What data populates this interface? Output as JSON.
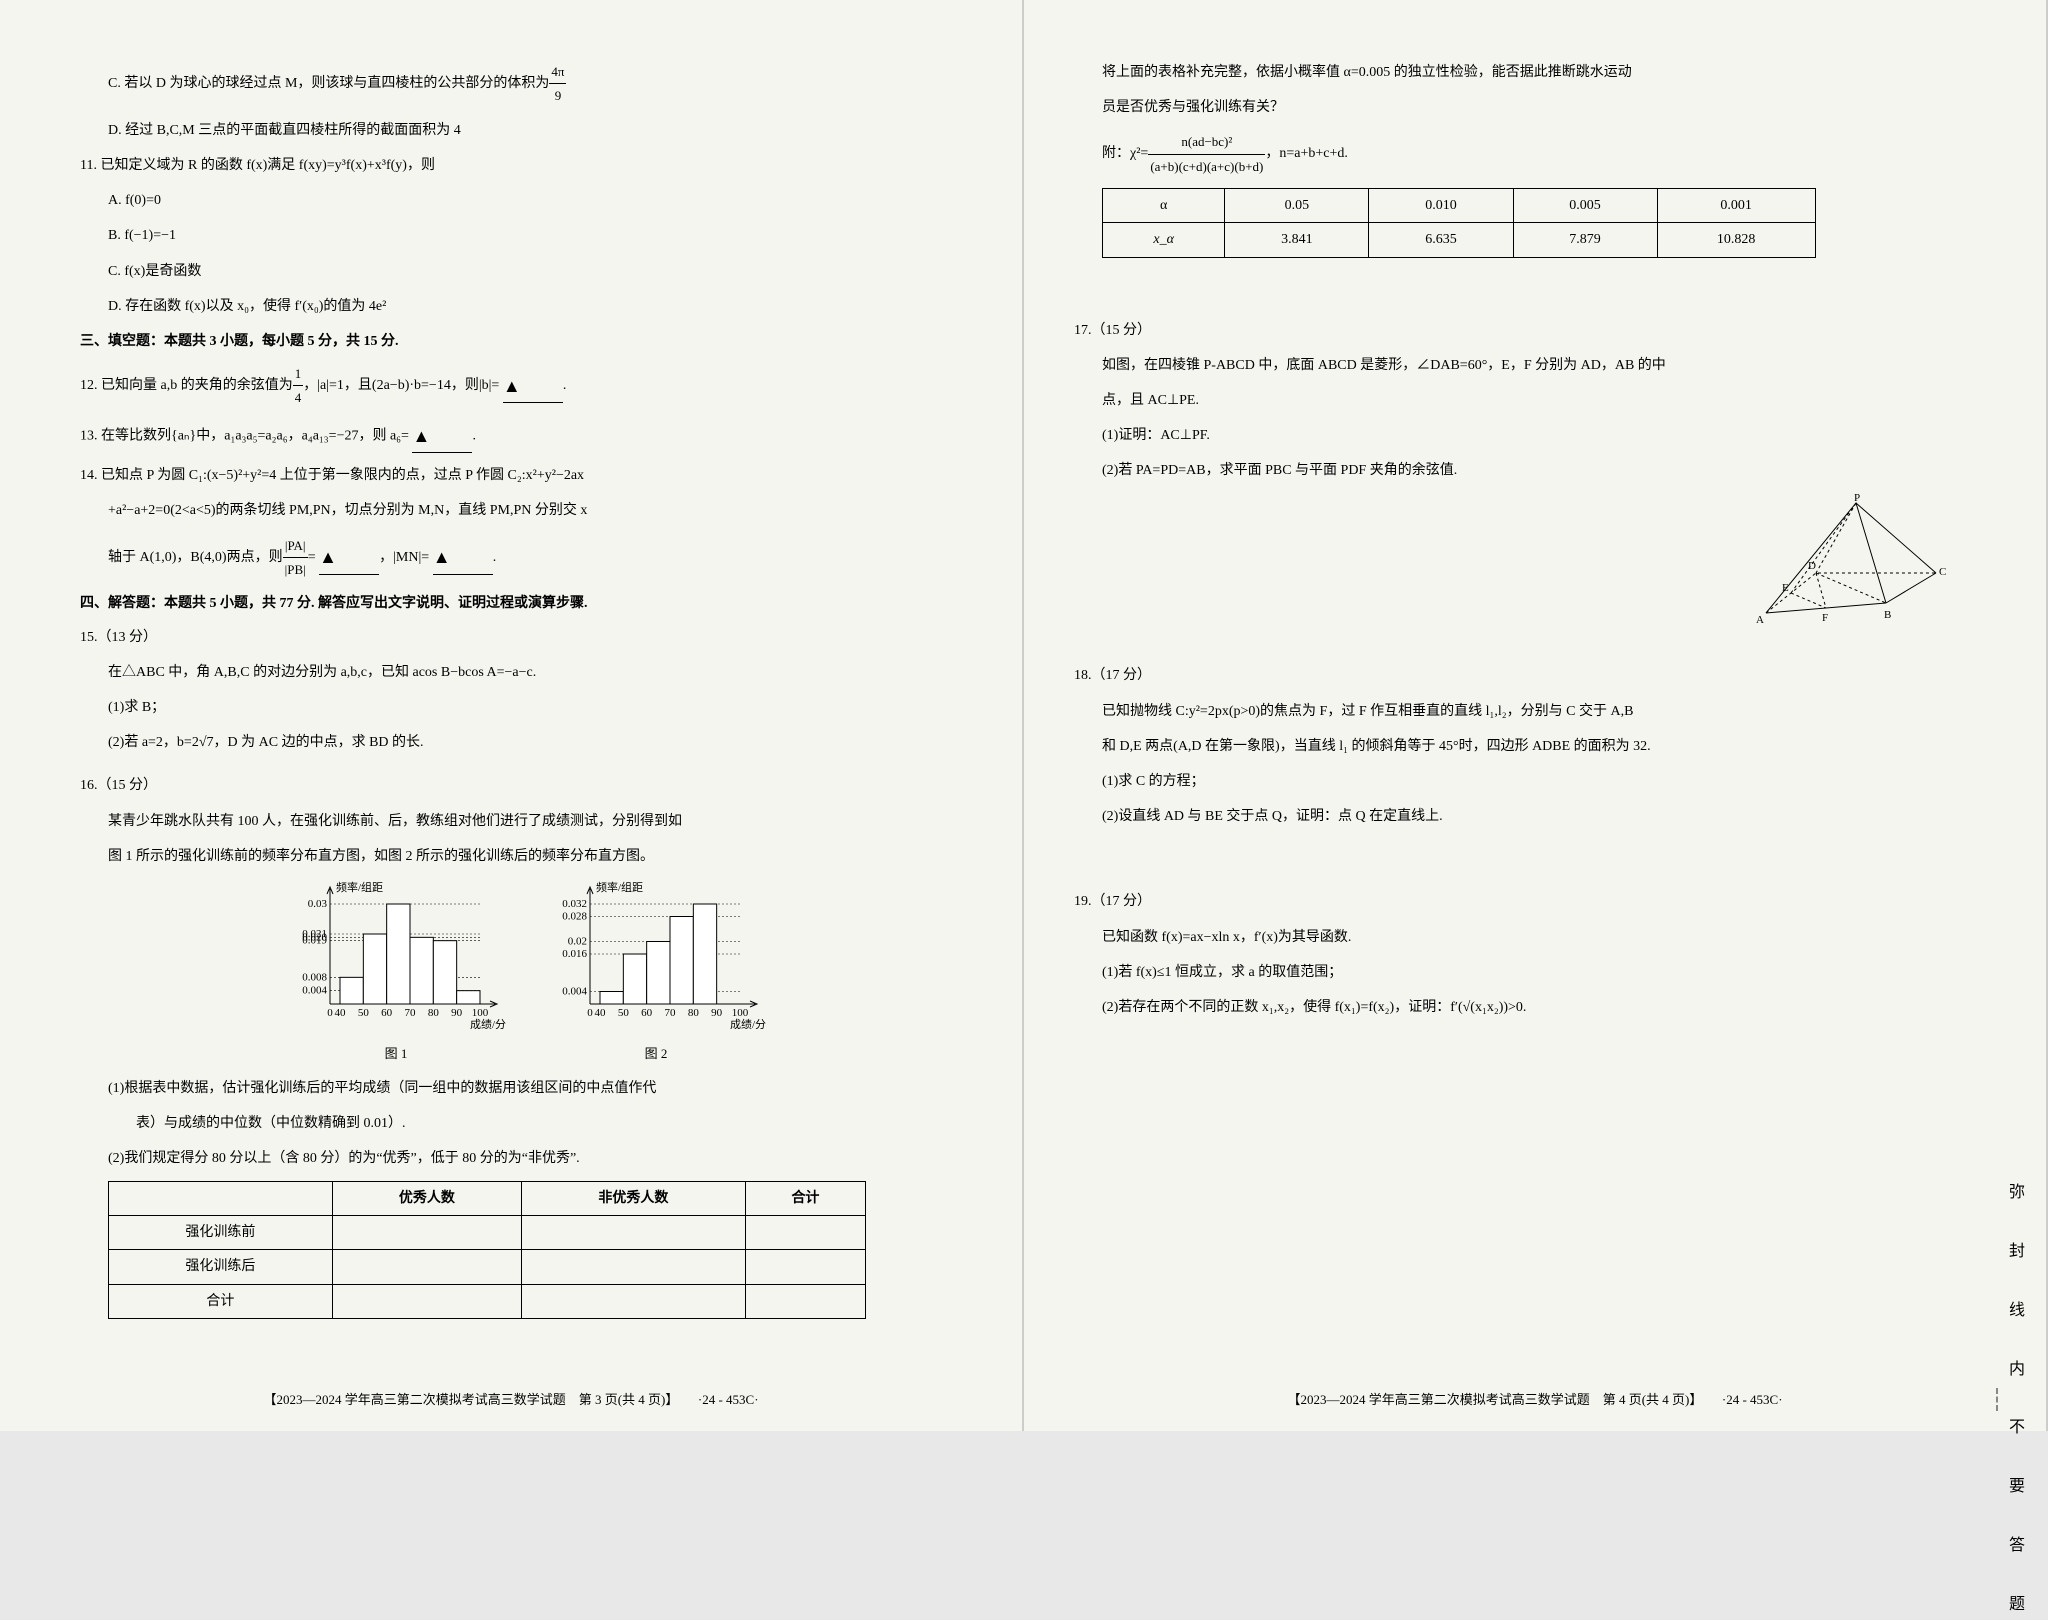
{
  "left": {
    "q10c": "C. 若以 D 为球心的球经过点 M，则该球与直四棱柱的公共部分的体积为",
    "q10c_frac_n": "4π",
    "q10c_frac_d": "9",
    "q10d": "D. 经过 B,C,M 三点的平面截直四棱柱所得的截面面积为 4",
    "q11": "11. 已知定义域为 R 的函数 f(x)满足 f(xy)=y³f(x)+x³f(y)，则",
    "q11a": "A. f(0)=0",
    "q11b": "B. f(−1)=−1",
    "q11c": "C. f(x)是奇函数",
    "q11d": "D. 存在函数 f(x)以及 x₀，使得 f′(x₀)的值为 4e²",
    "sec3": "三、填空题：本题共 3 小题，每小题 5 分，共 15 分.",
    "q12": "12. 已知向量 a,b 的夹角的余弦值为",
    "q12b": "，|a|=1，且(2a−b)·b=−14，则|b|= ",
    "q12_frac_n": "1",
    "q12_frac_d": "4",
    "q13": "13. 在等比数列{aₙ}中，a₁a₃a₅=a₂a₆，a₄a₁₃=−27，则 a₆= ",
    "q14": "14. 已知点 P 为圆 C₁:(x−5)²+y²=4 上位于第一象限内的点，过点 P 作圆 C₂:x²+y²−2ax",
    "q14b": "+a²−a+2=0(2<a<5)的两条切线 PM,PN，切点分别为 M,N，直线 PM,PN 分别交 x",
    "q14c": "轴于 A(1,0)，B(4,0)两点，则",
    "q14c2": "= ",
    "q14c3": "，|MN|= ",
    "q14_pa": "|PA|",
    "q14_pb": "|PB|",
    "sec4": "四、解答题：本题共 5 小题，共 77 分. 解答应写出文字说明、证明过程或演算步骤.",
    "q15": "15.（13 分）",
    "q15a": "在△ABC 中，角 A,B,C 的对边分别为 a,b,c，已知 acos B−bcos A=−a−c.",
    "q15_1": "(1)求 B；",
    "q15_2": "(2)若 a=2，b=2√7，D 为 AC 边的中点，求 BD 的长.",
    "q16": "16.（15 分）",
    "q16a": "某青少年跳水队共有 100 人，在强化训练前、后，教练组对他们进行了成绩测试，分别得到如",
    "q16b": "图 1 所示的强化训练前的频率分布直方图，如图 2 所示的强化训练后的频率分布直方图。",
    "chart_ylabel": "频率/组距",
    "chart_xlabel": "成绩/分",
    "chart1_caption": "图 1",
    "chart2_caption": "图 2",
    "chart1": {
      "yticks": [
        "0.004",
        "0.008",
        "0.019",
        "0.020",
        "0.021",
        "0.03"
      ],
      "yvals": [
        0.004,
        0.008,
        0.019,
        0.02,
        0.021,
        0.03
      ],
      "xticks": [
        "0",
        "40",
        "50",
        "60",
        "70",
        "80",
        "90",
        "100"
      ],
      "bars": [
        0.008,
        0.021,
        0.03,
        0.02,
        0.019,
        0.004
      ],
      "bar_color": "#ffffff",
      "stroke": "#000000",
      "grid_dash": "2,2"
    },
    "chart2": {
      "yticks": [
        "0.004",
        "0.016",
        "0.02",
        "0.028",
        "0.032"
      ],
      "yvals": [
        0.004,
        0.016,
        0.02,
        0.028,
        0.032
      ],
      "xticks": [
        "0",
        "40",
        "50",
        "60",
        "70",
        "80",
        "90",
        "100"
      ],
      "bars": [
        0.004,
        0.016,
        0.02,
        0.028,
        0.032,
        null
      ],
      "bar_color": "#ffffff",
      "stroke": "#000000",
      "grid_dash": "2,2"
    },
    "q16_1": "(1)根据表中数据，估计强化训练后的平均成绩（同一组中的数据用该组区间的中点值作代",
    "q16_1b": "表）与成绩的中位数（中位数精确到 0.01）.",
    "q16_2": "(2)我们规定得分 80 分以上（含 80 分）的为“优秀”，低于 80 分的为“非优秀”.",
    "table_cols": [
      "",
      "优秀人数",
      "非优秀人数",
      "合计"
    ],
    "table_rows": [
      "强化训练前",
      "强化训练后",
      "合计"
    ],
    "footer": "【2023—2024 学年高三第二次模拟考试高三数学试题　第 3 页(共 4 页)】",
    "footer_code": "·24 - 453C·"
  },
  "right": {
    "q16c": "将上面的表格补充完整，依据小概率值 α=0.005 的独立性检验，能否据此推断跳水运动",
    "q16d": "员是否优秀与强化训练有关？",
    "chi_formula": "附：χ²=",
    "chi_n": "n(ad−bc)²",
    "chi_d": "(a+b)(c+d)(a+c)(b+d)",
    "chi_tail": "，n=a+b+c+d.",
    "chi_table": {
      "row1": [
        "α",
        "0.05",
        "0.010",
        "0.005",
        "0.001"
      ],
      "row2": [
        "x_α",
        "3.841",
        "6.635",
        "7.879",
        "10.828"
      ]
    },
    "q17": "17.（15 分）",
    "q17a": "如图，在四棱锥 P-ABCD 中，底面 ABCD 是菱形，∠DAB=60°，E，F 分别为 AD，AB 的中",
    "q17b": "点，且 AC⊥PE.",
    "q17_1": "(1)证明：AC⊥PF.",
    "q17_2": "(2)若 PA=PD=AB，求平面 PBC 与平面 PDF 夹角的余弦值.",
    "pyramid_labels": [
      "P",
      "A",
      "B",
      "C",
      "D",
      "E",
      "F"
    ],
    "q18": "18.（17 分）",
    "q18a": "已知抛物线 C:y²=2px(p>0)的焦点为 F，过 F 作互相垂直的直线 l₁,l₂，分别与 C 交于 A,B",
    "q18b": "和 D,E 两点(A,D 在第一象限)，当直线 l₁ 的倾斜角等于 45°时，四边形 ADBE 的面积为 32.",
    "q18_1": "(1)求 C 的方程；",
    "q18_2": "(2)设直线 AD 与 BE 交于点 Q，证明：点 Q 在定直线上.",
    "q19": "19.（17 分）",
    "q19a": "已知函数 f(x)=ax−xln x，f′(x)为其导函数.",
    "q19_1": "(1)若 f(x)≤1 恒成立，求 a 的取值范围；",
    "q19_2": "(2)若存在两个不同的正数 x₁,x₂，使得 f(x₁)=f(x₂)，证明：f′(√(x₁x₂))>0.",
    "footer": "【2023—2024 学年高三第二次模拟考试高三数学试题　第 4 页(共 4 页)】",
    "footer_code": "·24 - 453C·",
    "rail": [
      "弥",
      "封",
      "线",
      "内",
      "不",
      "要",
      "答",
      "题"
    ]
  }
}
